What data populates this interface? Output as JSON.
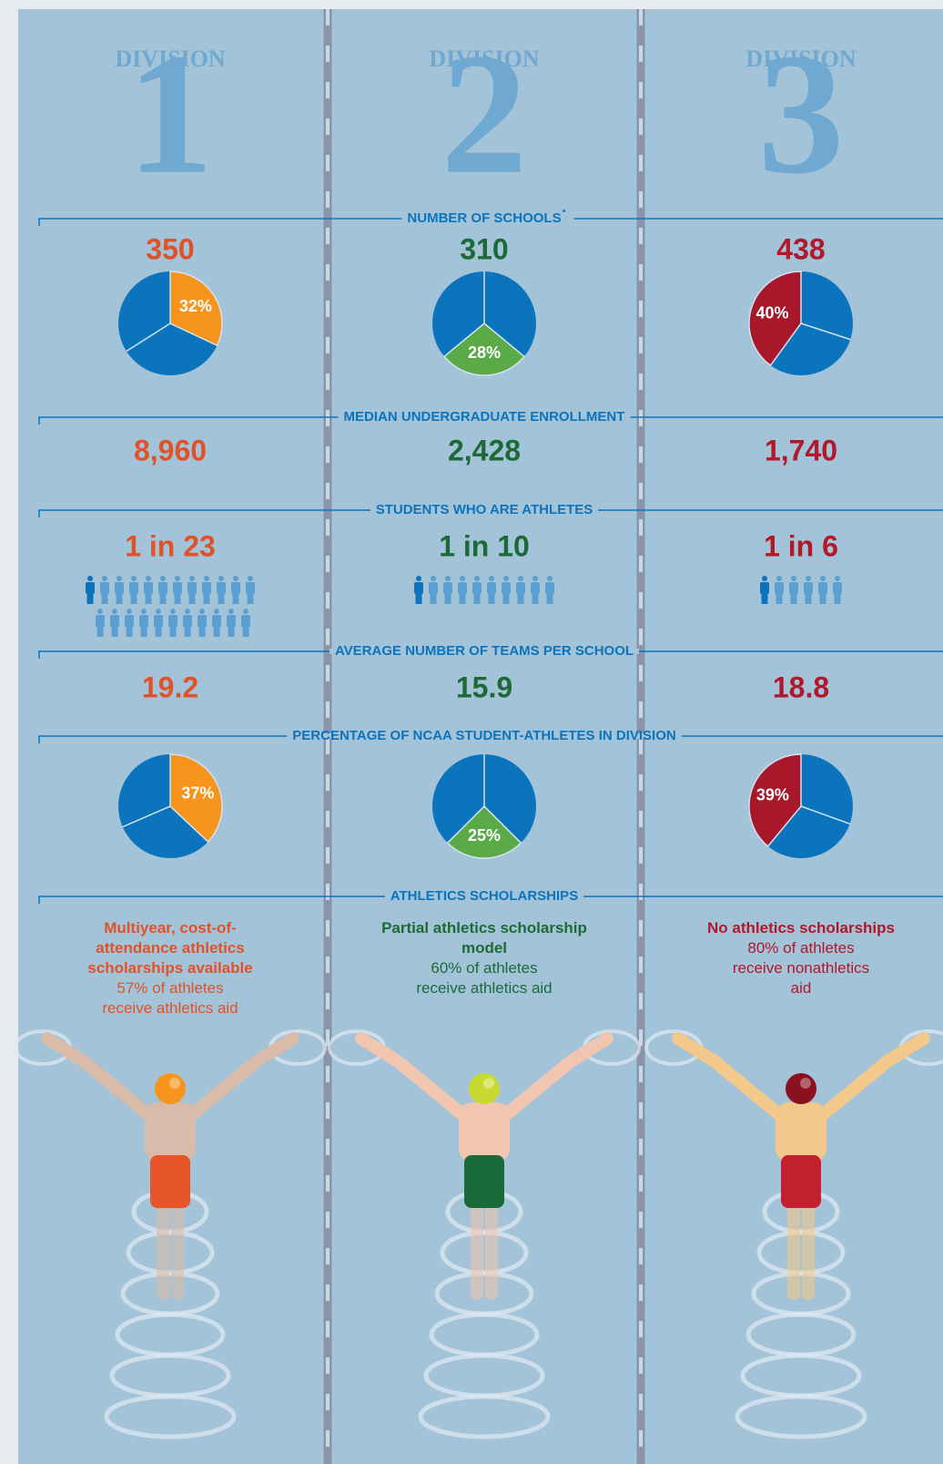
{
  "divisions": [
    {
      "label": "DIVISION",
      "number": "1",
      "text_color": "#e0522a",
      "slice_color": "#f7941d",
      "cap_color": "#f7941d",
      "trunks_color": "#e8552a",
      "skin_color": "#d8bba8"
    },
    {
      "label": "DIVISION",
      "number": "2",
      "text_color": "#1d6a39",
      "slice_color": "#5aab47",
      "cap_color": "#c8da30",
      "trunks_color": "#1b6b3a",
      "skin_color": "#f0c6b0"
    },
    {
      "label": "DIVISION",
      "number": "3",
      "text_color": "#b0182b",
      "slice_color": "#a8182a",
      "cap_color": "#8b1020",
      "trunks_color": "#c2202f",
      "skin_color": "#f2c98a"
    }
  ],
  "sections": [
    {
      "heading": "NUMBER OF SCHOOLS",
      "note": "*",
      "values": [
        350,
        310,
        438
      ],
      "shares": [
        32,
        28,
        40
      ],
      "share_labels": [
        "32%",
        "28%",
        "40%"
      ]
    },
    {
      "heading": "MEDIAN UNDERGRADUATE ENROLLMENT",
      "values": [
        8960,
        2428,
        1740
      ],
      "value_labels": [
        "8,960",
        "2,428",
        "1,740"
      ]
    },
    {
      "heading": "STUDENTS WHO ARE ATHLETES",
      "values": [
        23,
        10,
        6
      ],
      "value_labels": [
        "1 in 23",
        "1 in 10",
        "1 in 6"
      ]
    },
    {
      "heading": "AVERAGE NUMBER OF TEAMS PER SCHOOL",
      "values": [
        19.2,
        15.9,
        18.8
      ]
    },
    {
      "heading": "PERCENTAGE OF NCAA STUDENT-ATHLETES IN DIVISION",
      "shares": [
        37,
        25,
        39
      ],
      "share_labels": [
        "37%",
        "25%",
        "39%"
      ]
    },
    {
      "heading": "ATHLETICS SCHOLARSHIPS",
      "models": [
        "Multiyear, cost-of-attendance athletics scholarships available",
        "Partial athletics scholarship model",
        "No athletics scholarships"
      ],
      "details": [
        "57% of athletes receive athletics aid",
        "60% of athletes receive athletics aid",
        "80% of athletes receive nonathletics aid"
      ]
    }
  ]
}
